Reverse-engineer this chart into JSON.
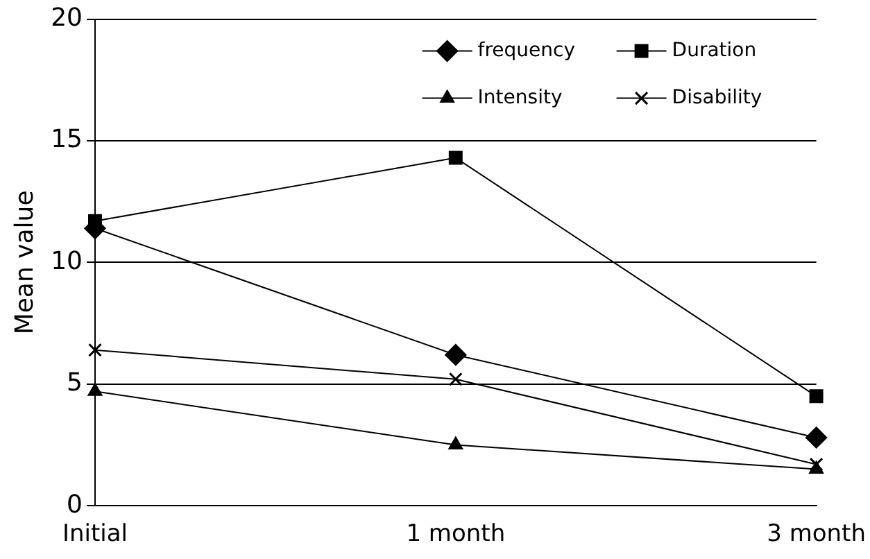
{
  "chart_data": {
    "type": "line",
    "ylabel": "Mean value",
    "categories": [
      "Initial",
      "1 month",
      "3 month"
    ],
    "series": [
      {
        "name": "frequency",
        "color": "#000000",
        "marker": "diamond",
        "values": [
          11.4,
          6.2,
          2.8
        ]
      },
      {
        "name": "Duration",
        "color": "#000000",
        "marker": "square",
        "values": [
          11.7,
          14.3,
          4.5
        ]
      },
      {
        "name": "Intensity",
        "color": "#000000",
        "marker": "triangle",
        "values": [
          4.7,
          2.5,
          1.5
        ]
      },
      {
        "name": "Disability",
        "color": "#000000",
        "marker": "cross",
        "values": [
          6.4,
          5.2,
          1.7
        ]
      }
    ],
    "ylim": [
      0,
      20
    ],
    "yticks": [
      0,
      5,
      10,
      15,
      20
    ],
    "grid": "y",
    "legend": "top right"
  }
}
